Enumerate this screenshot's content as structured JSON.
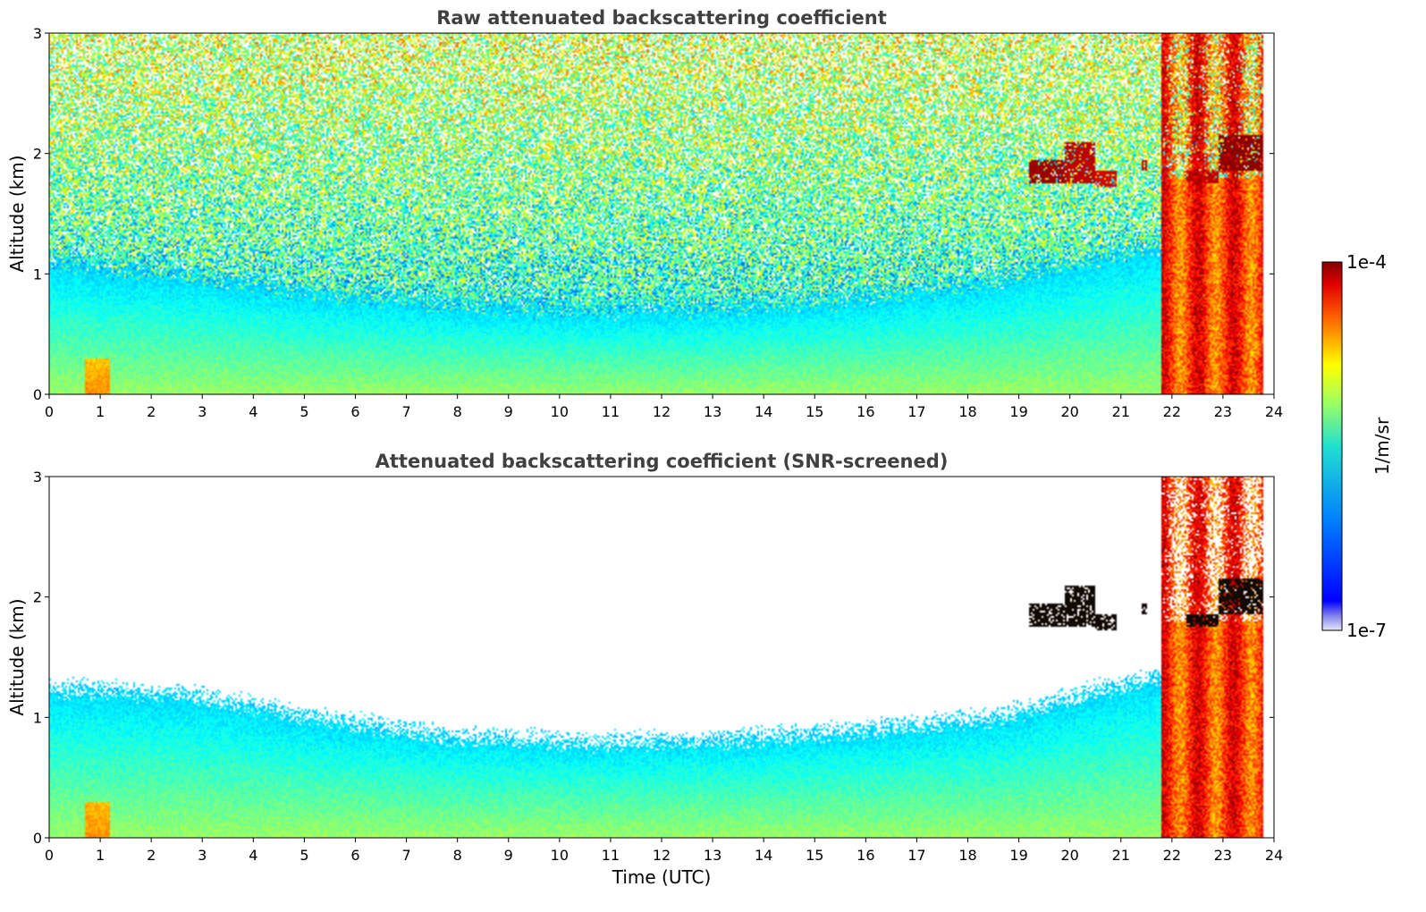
{
  "chart_data": [
    {
      "type": "heatmap",
      "title": "Raw attenuated backscattering coefficient",
      "xlabel": "",
      "ylabel": "Altitude (km)",
      "xlim": [
        0,
        24
      ],
      "ylim": [
        0,
        3
      ],
      "x_ticks": [
        "0",
        "1",
        "2",
        "3",
        "4",
        "5",
        "6",
        "7",
        "8",
        "9",
        "10",
        "11",
        "12",
        "13",
        "14",
        "15",
        "16",
        "17",
        "18",
        "19",
        "20",
        "21",
        "22",
        "23",
        "24"
      ],
      "y_ticks": [
        "0",
        "1",
        "2",
        "3"
      ],
      "screened": false,
      "noise_top_log": -5.4,
      "noise_level_log": -6.2,
      "features": [
        {
          "kind": "aerosol_layer",
          "x_start": 0,
          "x_end": 23.8,
          "top_km": [
            1.1,
            1.0,
            0.85,
            0.75,
            0.7,
            0.72,
            0.8,
            0.95,
            1.2,
            1.35
          ],
          "log_value": -6.1
        },
        {
          "kind": "cloud",
          "x_start": 19.2,
          "x_end": 19.9,
          "base_km": 1.75,
          "top_km": 1.95,
          "log_value": -4.1
        },
        {
          "kind": "cloud",
          "x_start": 19.9,
          "x_end": 20.5,
          "base_km": 1.75,
          "top_km": 2.1,
          "log_value": -4.2
        },
        {
          "kind": "cloud",
          "x_start": 20.5,
          "x_end": 20.9,
          "base_km": 1.72,
          "top_km": 1.85,
          "log_value": -4.3
        },
        {
          "kind": "cloud",
          "x_start": 21.4,
          "x_end": 21.5,
          "base_km": 1.85,
          "top_km": 1.95,
          "log_value": -4.3
        },
        {
          "kind": "cloud",
          "x_start": 22.3,
          "x_end": 22.9,
          "base_km": 1.75,
          "top_km": 1.85,
          "log_value": -4.2
        },
        {
          "kind": "cloud",
          "x_start": 22.9,
          "x_end": 23.8,
          "base_km": 1.85,
          "top_km": 2.15,
          "log_value": -4.05
        },
        {
          "kind": "precipitation",
          "x_start": 21.8,
          "x_end": 23.8,
          "base_km": 0,
          "top_km": 3,
          "log_value": -4.9
        }
      ]
    },
    {
      "type": "heatmap",
      "title": "Attenuated backscattering coefficient (SNR-screened)",
      "xlabel": "Time (UTC)",
      "ylabel": "Altitude (km)",
      "xlim": [
        0,
        24
      ],
      "ylim": [
        0,
        3
      ],
      "x_ticks": [
        "0",
        "1",
        "2",
        "3",
        "4",
        "5",
        "6",
        "7",
        "8",
        "9",
        "10",
        "11",
        "12",
        "13",
        "14",
        "15",
        "16",
        "17",
        "18",
        "19",
        "20",
        "21",
        "22",
        "23",
        "24"
      ],
      "y_ticks": [
        "0",
        "1",
        "2",
        "3"
      ],
      "screened": true,
      "features": [
        {
          "kind": "aerosol_layer",
          "x_start": 0,
          "x_end": 23.8,
          "top_km": [
            1.25,
            1.2,
            1.0,
            0.85,
            0.8,
            0.82,
            0.9,
            1.0,
            1.3,
            1.45
          ],
          "log_value": -6.1
        },
        {
          "kind": "cloud",
          "x_start": 19.2,
          "x_end": 19.9,
          "base_km": 1.75,
          "top_km": 1.95,
          "log_value": -3.9
        },
        {
          "kind": "cloud",
          "x_start": 19.9,
          "x_end": 20.5,
          "base_km": 1.75,
          "top_km": 2.1,
          "log_value": -3.9
        },
        {
          "kind": "cloud",
          "x_start": 20.5,
          "x_end": 20.9,
          "base_km": 1.72,
          "top_km": 1.85,
          "log_value": -3.9
        },
        {
          "kind": "cloud",
          "x_start": 21.4,
          "x_end": 21.5,
          "base_km": 1.85,
          "top_km": 1.95,
          "log_value": -3.9
        },
        {
          "kind": "cloud",
          "x_start": 22.3,
          "x_end": 22.9,
          "base_km": 1.75,
          "top_km": 1.85,
          "log_value": -3.9
        },
        {
          "kind": "cloud",
          "x_start": 22.9,
          "x_end": 23.8,
          "base_km": 1.85,
          "top_km": 2.15,
          "log_value": -3.9
        },
        {
          "kind": "precipitation",
          "x_start": 21.8,
          "x_end": 23.8,
          "base_km": 0,
          "top_km": 3,
          "log_value": -4.9
        }
      ]
    }
  ],
  "colorbar": {
    "label": "1/m/sr",
    "max_label": "1e-4",
    "min_label": "1e-7",
    "log_min": -7,
    "log_max": -4,
    "colormap": "jet",
    "low_colors": [
      "#e6e6fa",
      "#b3b3f0",
      "#8080ea"
    ]
  }
}
